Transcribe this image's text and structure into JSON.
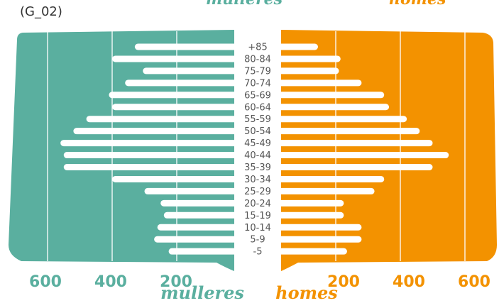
{
  "chart_code": "(G_02)",
  "colors": {
    "women": "#5aaf9f",
    "men": "#f39200",
    "bars": "#ffffff",
    "labels": "#555555"
  },
  "chart_data": {
    "type": "bar",
    "orientation": "horizontal-population-pyramid",
    "categories": [
      "+85",
      "80-84",
      "75-79",
      "70-74",
      "65-69",
      "60-64",
      "55-59",
      "50-54",
      "45-49",
      "40-44",
      "35-39",
      "30-34",
      "25-29",
      "20-24",
      "15-19",
      "10-14",
      "5-9",
      "-5"
    ],
    "series": [
      {
        "name": "mulleres",
        "values": [
          330,
          400,
          305,
          360,
          410,
          400,
          480,
          520,
          560,
          550,
          550,
          400,
          300,
          250,
          240,
          260,
          270,
          225
        ]
      },
      {
        "name": "homes",
        "values": [
          145,
          215,
          210,
          280,
          350,
          365,
          420,
          460,
          500,
          550,
          500,
          350,
          320,
          225,
          225,
          280,
          280,
          235
        ]
      }
    ],
    "xticks_left": [
      "600",
      "400",
      "200"
    ],
    "xticks_right": [
      "200",
      "400",
      "600"
    ],
    "xlim": [
      0,
      700
    ],
    "grid": true,
    "legend": [
      "mulleres",
      "homes"
    ]
  }
}
